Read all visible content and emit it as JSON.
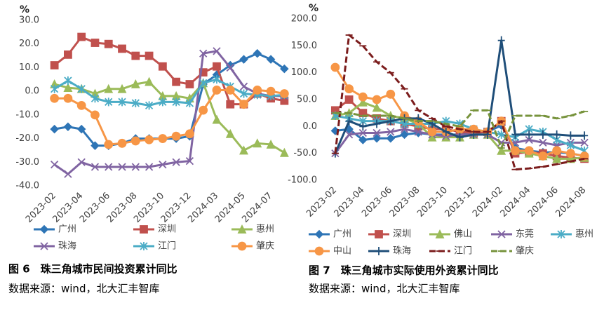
{
  "chart_data": [
    {
      "type": "line",
      "title": "图 6　珠三角城市民间投资累计同比",
      "source": "数据来源：wind，北大汇丰智库",
      "y_label": "%",
      "categories": [
        "2023-02",
        null,
        "2023-04",
        null,
        "2023-06",
        null,
        "2023-08",
        null,
        "2023-10",
        null,
        "2023-12",
        null,
        "2024-03",
        null,
        "2024-05",
        null,
        "2024-07",
        null
      ],
      "ylim": [
        -40,
        30
      ],
      "yticks": [
        {
          "value": -40,
          "label": "-40.0"
        },
        {
          "value": -30,
          "label": "-30.0"
        },
        {
          "value": -20,
          "label": "-20.0"
        },
        {
          "value": -10,
          "label": "-10.0"
        },
        {
          "value": 0,
          "label": "0.0"
        },
        {
          "value": 10,
          "label": "10.0"
        },
        {
          "value": 20,
          "label": "20.0"
        },
        {
          "value": 30,
          "label": "30.0"
        }
      ],
      "grid": false,
      "series": [
        {
          "name": "广州",
          "color": "#2e75b6",
          "marker": "diamond",
          "values": [
            -16,
            -15,
            -16,
            -23,
            -23,
            -22,
            -20,
            -20,
            -20,
            -20,
            -19,
            3,
            7,
            11,
            13.5,
            16,
            13.5,
            9.5
          ]
        },
        {
          "name": "深圳",
          "color": "#c0504d",
          "marker": "square",
          "values": [
            11,
            15.5,
            23,
            20.5,
            20,
            18,
            15,
            15,
            10.5,
            4,
            3,
            8,
            10.5,
            -5.5,
            -5.5,
            -1,
            -3,
            -4
          ]
        },
        {
          "name": "惠州",
          "color": "#9bbb59",
          "marker": "triangle",
          "values": [
            3,
            1.5,
            1,
            -1,
            1,
            1,
            3,
            4,
            -2,
            -2,
            -3,
            3.5,
            -12,
            -18,
            -25,
            -22,
            -22.5,
            -26
          ]
        },
        {
          "name": "珠海",
          "color": "#8064a2",
          "marker": "x",
          "values": [
            -31,
            -35,
            -30,
            -32,
            -32,
            -32,
            -32,
            -32,
            -31,
            -30,
            -29.5,
            16,
            17,
            10,
            2,
            -1,
            -2,
            -2
          ]
        },
        {
          "name": "江门",
          "color": "#4bacc6",
          "marker": "asterisk",
          "values": [
            1,
            4.5,
            1,
            -3,
            -4.5,
            -4.5,
            -5,
            -6,
            -4.5,
            -4.5,
            -5,
            3.5,
            5,
            2,
            -1,
            -1.5,
            -2,
            -1.5
          ]
        },
        {
          "name": "肇庆",
          "color": "#f79646",
          "marker": "circle",
          "values": [
            -3,
            -3,
            -6,
            -10,
            -22.5,
            -22,
            -21,
            -20.5,
            -20,
            -19,
            -18,
            -8,
            0.5,
            0.5,
            -5.5,
            0.5,
            0,
            -1
          ]
        }
      ]
    },
    {
      "type": "line",
      "title": "图 7　珠三角城市实际使用外资累计同比",
      "source": "数据来源：wind，北大汇丰智库",
      "y_label": "%",
      "categories": [
        "2023-02",
        null,
        "2023-04",
        null,
        "2023-06",
        null,
        "2023-08",
        null,
        "2023-10",
        null,
        "2023-12",
        null,
        "2024-02",
        null,
        "2024-04",
        null,
        "2024-06",
        null,
        "2024-08"
      ],
      "ylim": [
        -100,
        200
      ],
      "yticks": [
        {
          "value": -100,
          "label": "-100.0"
        },
        {
          "value": -50,
          "label": "-50.0"
        },
        {
          "value": 0,
          "label": "0.0"
        },
        {
          "value": 50,
          "label": "50.0"
        },
        {
          "value": 100,
          "label": "100.0"
        },
        {
          "value": 150,
          "label": "150.0"
        },
        {
          "value": 200,
          "label": "200.0"
        }
      ],
      "grid": false,
      "series": [
        {
          "name": "广州",
          "color": "#2e75b6",
          "marker": "diamond",
          "values": [
            -8,
            -5,
            -25,
            -22,
            -22,
            -15,
            -12,
            -15,
            -15,
            -15,
            -12,
            -10,
            2,
            -40,
            -45,
            -48,
            -48,
            -50,
            -55
          ]
        },
        {
          "name": "深圳",
          "color": "#c0504d",
          "marker": "square",
          "values": [
            30,
            50,
            25,
            15,
            10,
            5,
            0,
            -5,
            -5,
            -10,
            -12,
            -10,
            10,
            -50,
            -48,
            -50,
            -55,
            -58,
            -60
          ]
        },
        {
          "name": "佛山",
          "color": "#9bbb59",
          "marker": "triangle",
          "values": [
            20,
            25,
            45,
            35,
            20,
            15,
            5,
            -20,
            -20,
            -20,
            -15,
            -15,
            -45,
            -45,
            -50,
            -55,
            -60,
            -60,
            -58
          ]
        },
        {
          "name": "东莞",
          "color": "#8064a2",
          "marker": "x",
          "values": [
            -50,
            -15,
            -12,
            -12,
            -10,
            -5,
            -10,
            -15,
            -18,
            -15,
            -15,
            -15,
            -30,
            -30,
            -25,
            -30,
            -35,
            -30,
            -30
          ]
        },
        {
          "name": "惠州",
          "color": "#4bacc6",
          "marker": "asterisk",
          "values": [
            20,
            15,
            10,
            10,
            10,
            5,
            5,
            5,
            10,
            5,
            -5,
            -10,
            -15,
            -20,
            -5,
            -10,
            -25,
            -35,
            -45
          ]
        },
        {
          "name": "中山",
          "color": "#f79646",
          "marker": "circle",
          "values": [
            110,
            70,
            55,
            50,
            60,
            20,
            10,
            -10,
            -10,
            -5,
            -5,
            -10,
            10,
            -45,
            -45,
            -55,
            -45,
            -50,
            -55
          ]
        },
        {
          "name": "珠海",
          "color": "#1f4e79",
          "marker": "plus",
          "values": [
            -50,
            10,
            0,
            5,
            10,
            15,
            15,
            5,
            -10,
            -20,
            -15,
            -15,
            160,
            -15,
            -15,
            -15,
            -15,
            -17,
            -17
          ]
        },
        {
          "name": "江门",
          "color": "#7b1c1c",
          "marker": "dash",
          "dash": true,
          "values": [
            -50,
            170,
            150,
            120,
            100,
            70,
            30,
            15,
            0,
            -5,
            -10,
            -10,
            10,
            -80,
            -78,
            -75,
            -70,
            -65,
            -60
          ]
        },
        {
          "name": "肇庆",
          "color": "#77933c",
          "marker": "dash",
          "dash": true,
          "values": [
            25,
            25,
            20,
            20,
            20,
            15,
            10,
            10,
            5,
            0,
            30,
            30,
            -40,
            20,
            20,
            20,
            15,
            20,
            28
          ]
        }
      ]
    }
  ]
}
